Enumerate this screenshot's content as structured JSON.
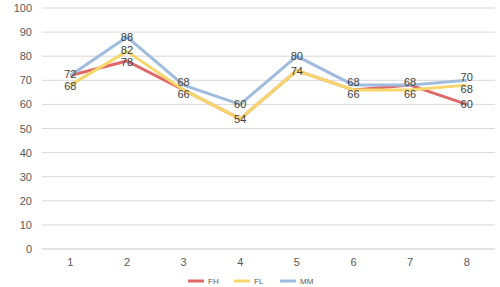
{
  "chart_data": {
    "type": "line",
    "categories": [
      "1",
      "2",
      "3",
      "4",
      "5",
      "6",
      "7",
      "8"
    ],
    "series": [
      {
        "name": "FH",
        "color": "#e06868",
        "values": [
          72,
          78,
          66,
          54,
          74,
          66,
          68,
          60
        ]
      },
      {
        "name": "FL",
        "color": "#f7d66b",
        "values": [
          68,
          82,
          66,
          54,
          74,
          66,
          66,
          68
        ]
      },
      {
        "name": "MM",
        "color": "#9fbbdd",
        "values": [
          72,
          88,
          68,
          60,
          80,
          68,
          68,
          70
        ]
      }
    ],
    "ylim": [
      0,
      100
    ],
    "yticks": [
      0,
      10,
      20,
      30,
      40,
      50,
      60,
      70,
      80,
      90,
      100
    ],
    "grid": true,
    "data_labels": true,
    "legend": "bottom"
  }
}
